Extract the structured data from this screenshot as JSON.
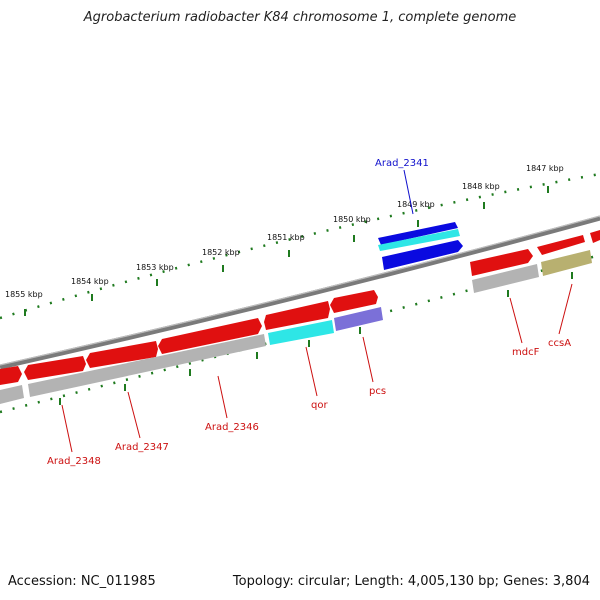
{
  "title": "Agrobacterium radiobacter K84 chromosome 1, complete genome",
  "footer": {
    "accession": "Accession: NC_011985",
    "summary": "Topology: circular; Length: 4,005,130 bp; Genes: 3,804"
  },
  "tick_labels": [
    "1855 kbp",
    "1854 kbp",
    "1853 kbp",
    "1852 kbp",
    "1851 kbp",
    "1850 kbp",
    "1849 kbp",
    "1848 kbp",
    "1847 kbp"
  ],
  "gene_labels": {
    "arad_2341": "Arad_2341",
    "arad_2348": "Arad_2348",
    "arad_2347": "Arad_2347",
    "arad_2346": "Arad_2346",
    "qor": "qor",
    "pcs": "pcs",
    "mdcF": "mdcF",
    "ccsA": "ccsA"
  },
  "colors": {
    "cds": "#e01010",
    "highlight_cds": "#0a0ae0",
    "rna": "#2ee6e6",
    "feature_gray": "#b3b3b3",
    "feature_purple": "#7b70d8",
    "feature_olive": "#b8b070",
    "backbone": "#7a7a7a",
    "ticks": "#1f7a1f",
    "label_red": "#cc1010",
    "label_blue": "#1010cc"
  }
}
